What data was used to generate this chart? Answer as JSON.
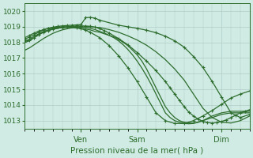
{
  "xlabel": "Pression niveau de la mer( hPa )",
  "ylim": [
    1012.5,
    1020.5
  ],
  "xlim": [
    0,
    96
  ],
  "yticks": [
    1013,
    1014,
    1015,
    1016,
    1017,
    1018,
    1019,
    1020
  ],
  "xtick_positions": [
    24,
    48,
    84
  ],
  "xtick_labels": [
    "Ven",
    "Sam",
    "Dim"
  ],
  "bg_color": "#d0eae4",
  "grid_color": "#b0ccc6",
  "line_color": "#2d6e2d",
  "lines": [
    {
      "x": [
        0,
        2,
        4,
        6,
        8,
        10,
        12,
        14,
        16,
        18,
        20,
        22,
        24,
        26,
        28,
        30,
        32,
        34,
        36,
        38,
        40,
        42,
        44,
        46,
        48,
        50,
        52,
        54,
        56,
        58,
        60,
        62,
        64,
        66,
        68,
        70,
        72,
        74,
        76,
        78,
        80,
        82,
        84,
        86,
        88,
        90,
        92,
        94,
        96
      ],
      "y": [
        1018.0,
        1018.1,
        1018.3,
        1018.5,
        1018.65,
        1018.75,
        1018.85,
        1018.9,
        1018.95,
        1018.95,
        1018.95,
        1018.92,
        1018.9,
        1018.85,
        1018.8,
        1018.7,
        1018.65,
        1018.55,
        1018.45,
        1018.35,
        1018.2,
        1018.0,
        1017.8,
        1017.5,
        1017.2,
        1016.8,
        1016.3,
        1015.7,
        1015.1,
        1014.5,
        1013.9,
        1013.5,
        1013.2,
        1013.0,
        1012.9,
        1012.85,
        1012.85,
        1012.9,
        1013.0,
        1013.1,
        1013.2,
        1013.3,
        1013.4,
        1013.45,
        1013.5,
        1013.5,
        1013.5,
        1013.5,
        1013.5
      ],
      "marker": false,
      "lw": 0.9
    },
    {
      "x": [
        0,
        2,
        4,
        6,
        8,
        10,
        12,
        14,
        16,
        18,
        20,
        22,
        24,
        26,
        28,
        30,
        32,
        34,
        36,
        38,
        40,
        42,
        44,
        46,
        48,
        50,
        52,
        54,
        56,
        58,
        60,
        62,
        64,
        66,
        68,
        70,
        72,
        74,
        76,
        78,
        80,
        82,
        84,
        86,
        88,
        90,
        92,
        94,
        96
      ],
      "y": [
        1018.1,
        1018.2,
        1018.4,
        1018.55,
        1018.7,
        1018.8,
        1018.88,
        1018.93,
        1018.97,
        1019.0,
        1019.0,
        1019.0,
        1018.98,
        1018.95,
        1018.9,
        1018.82,
        1018.7,
        1018.6,
        1018.45,
        1018.3,
        1018.1,
        1017.85,
        1017.55,
        1017.2,
        1016.8,
        1016.35,
        1015.85,
        1015.3,
        1014.7,
        1014.1,
        1013.5,
        1013.2,
        1013.0,
        1012.9,
        1012.82,
        1012.8,
        1012.82,
        1012.9,
        1013.0,
        1013.15,
        1013.3,
        1013.4,
        1013.5,
        1013.55,
        1013.6,
        1013.6,
        1013.6,
        1013.6,
        1013.6
      ],
      "marker": false,
      "lw": 0.9
    },
    {
      "x": [
        0,
        2,
        4,
        6,
        8,
        10,
        12,
        16,
        18,
        20,
        22,
        24,
        26,
        28,
        30,
        32,
        34,
        36,
        40,
        44,
        48,
        52,
        56,
        60,
        62,
        64,
        66,
        68,
        70,
        72,
        74,
        76,
        78,
        80,
        82,
        84,
        86,
        88,
        90,
        92,
        94,
        96
      ],
      "y": [
        1018.05,
        1018.15,
        1018.3,
        1018.5,
        1018.65,
        1018.75,
        1018.85,
        1018.96,
        1018.99,
        1019.02,
        1019.05,
        1019.05,
        1019.05,
        1019.03,
        1018.97,
        1018.88,
        1018.75,
        1018.6,
        1018.25,
        1017.85,
        1017.35,
        1016.8,
        1016.2,
        1015.5,
        1015.1,
        1014.7,
        1014.3,
        1013.9,
        1013.55,
        1013.3,
        1013.1,
        1012.95,
        1012.88,
        1012.85,
        1012.88,
        1012.95,
        1013.05,
        1013.2,
        1013.35,
        1013.5,
        1013.6,
        1013.7
      ],
      "marker": true,
      "lw": 0.9
    },
    {
      "x": [
        0,
        2,
        4,
        6,
        8,
        10,
        12,
        14,
        16,
        18,
        20,
        22,
        24,
        26,
        28,
        30,
        32,
        40,
        44,
        48,
        52,
        56,
        60,
        64,
        68,
        72,
        76,
        80,
        84,
        88,
        92,
        96
      ],
      "y": [
        1018.2,
        1018.35,
        1018.5,
        1018.65,
        1018.8,
        1018.9,
        1018.97,
        1019.02,
        1019.06,
        1019.08,
        1019.1,
        1019.12,
        1019.14,
        1019.58,
        1019.6,
        1019.55,
        1019.42,
        1019.1,
        1019.0,
        1018.9,
        1018.78,
        1018.62,
        1018.4,
        1018.1,
        1017.7,
        1017.1,
        1016.4,
        1015.5,
        1014.5,
        1013.5,
        1013.2,
        1013.4
      ],
      "marker": true,
      "lw": 0.9
    },
    {
      "x": [
        0,
        2,
        4,
        6,
        8,
        10,
        12,
        14,
        16,
        18,
        20,
        22,
        24,
        28,
        32,
        36,
        40,
        44,
        48,
        52,
        56,
        60,
        64,
        68,
        72,
        76,
        80,
        84,
        88,
        92,
        96
      ],
      "y": [
        1017.5,
        1017.65,
        1017.85,
        1018.05,
        1018.25,
        1018.42,
        1018.58,
        1018.7,
        1018.8,
        1018.87,
        1018.93,
        1018.97,
        1019.0,
        1019.0,
        1018.95,
        1018.82,
        1018.65,
        1018.42,
        1018.15,
        1017.82,
        1017.4,
        1016.9,
        1016.3,
        1015.6,
        1014.7,
        1013.8,
        1013.2,
        1012.9,
        1012.85,
        1013.0,
        1013.3
      ],
      "marker": false,
      "lw": 0.9
    },
    {
      "x": [
        0,
        2,
        4,
        6,
        8,
        10,
        12,
        14,
        18,
        22,
        24,
        26,
        28,
        32,
        36,
        40,
        44,
        48,
        52,
        56,
        60,
        64,
        68,
        72,
        76,
        80,
        84,
        88,
        92,
        96
      ],
      "y": [
        1018.3,
        1018.45,
        1018.6,
        1018.72,
        1018.82,
        1018.9,
        1018.95,
        1018.99,
        1019.0,
        1018.95,
        1018.88,
        1018.78,
        1018.65,
        1018.3,
        1017.8,
        1017.15,
        1016.38,
        1015.5,
        1014.5,
        1013.5,
        1013.0,
        1012.82,
        1012.82,
        1013.0,
        1013.3,
        1013.65,
        1014.05,
        1014.45,
        1014.7,
        1014.9
      ],
      "marker": true,
      "lw": 0.9
    }
  ]
}
